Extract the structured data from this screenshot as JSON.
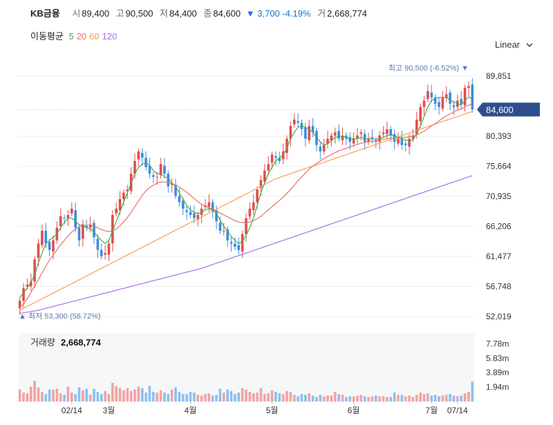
{
  "header": {
    "name": "KB금융",
    "open_label": "시",
    "open": "89,400",
    "high_label": "고",
    "high": "90,500",
    "low_label": "저",
    "low": "84,400",
    "close_label": "종",
    "close": "84,600",
    "change": "▼ 3,700 -4.19%",
    "volume_label": "거",
    "volume": "2,668,774"
  },
  "ma_legend": {
    "title": "이동평균",
    "items": [
      {
        "label": "5",
        "color": "#3fae4a"
      },
      {
        "label": "20",
        "color": "#ee6d6d"
      },
      {
        "label": "60",
        "color": "#f6a04d"
      },
      {
        "label": "120",
        "color": "#a86ef0"
      }
    ]
  },
  "scale_selector": {
    "label": "Linear",
    "icon": "chevron-down-icon"
  },
  "colors": {
    "up": "#e54b4b",
    "down": "#3e8be0",
    "vol_up": "#f2a3a3",
    "vol_down": "#8cc0ee",
    "current_tag": "#2f4f8c"
  },
  "chart_data": {
    "type": "candlestick",
    "price_axis": {
      "ylim": [
        52019,
        91500
      ],
      "ticks": [
        "89,851",
        "80,393",
        "75,664",
        "70,935",
        "66,206",
        "61,477",
        "56,748",
        "52,019"
      ],
      "tick_values": [
        89851,
        80393,
        75664,
        70935,
        66206,
        61477,
        56748,
        52019
      ]
    },
    "current_price": {
      "label": "84,600",
      "value": 84600
    },
    "annotations": {
      "high": "최고 90,500 (-6.52%) ▼",
      "high_value": 90500,
      "low": "▲ 최저 53,300 (58.72%)",
      "low_value": 53300
    },
    "x_labels": [
      "02/14",
      "3월",
      "4월",
      "5월",
      "6월",
      "7월",
      "07/14"
    ],
    "x_label_positions": [
      14,
      24,
      46,
      68,
      90,
      111,
      118
    ],
    "closes": [
      54500,
      56500,
      57000,
      57500,
      61000,
      63500,
      65500,
      63500,
      62500,
      64000,
      66000,
      67800,
      67500,
      68000,
      69000,
      66000,
      64000,
      66500,
      66000,
      66500,
      64500,
      62500,
      61500,
      62000,
      63500,
      68000,
      69000,
      70500,
      71500,
      72000,
      74500,
      76500,
      78000,
      77000,
      75500,
      74500,
      74000,
      74000,
      76000,
      74500,
      72500,
      73000,
      71000,
      70000,
      69000,
      68500,
      68000,
      67500,
      68000,
      69000,
      69500,
      70000,
      68500,
      67000,
      65500,
      65500,
      64000,
      63500,
      63000,
      62500,
      65000,
      67500,
      69000,
      70000,
      72000,
      73500,
      75000,
      76000,
      77500,
      77000,
      76500,
      78000,
      80000,
      82000,
      83000,
      82500,
      81500,
      80000,
      82000,
      81000,
      79000,
      78000,
      79000,
      80000,
      80500,
      81000,
      80000,
      80500,
      80000,
      79500,
      80000,
      80500,
      81000,
      79500,
      80000,
      80000,
      79500,
      80500,
      81000,
      81500,
      80500,
      79500,
      80000,
      79000,
      79000,
      80000,
      80500,
      83000,
      85000,
      86000,
      87500,
      86500,
      85500,
      85000,
      86500,
      87000,
      85500,
      85000,
      86000,
      85500,
      88000,
      88300,
      84600
    ],
    "ma5": [
      55000,
      55800,
      56500,
      57500,
      58500,
      60500,
      62000,
      63500,
      64000,
      64500,
      65000,
      66000,
      66800,
      67500,
      67500,
      67000,
      66500,
      66300,
      66000,
      65800,
      65300,
      64600,
      64000,
      63500,
      64000,
      65500,
      67000,
      68500,
      70000,
      71500,
      73000,
      74500,
      75500,
      76000,
      76200,
      75800,
      75000,
      74500,
      74500,
      74000,
      73800,
      73000,
      72500,
      71500,
      70500,
      69500,
      68800,
      68400,
      68200,
      68400,
      68800,
      69000,
      68800,
      68200,
      67200,
      66200,
      65500,
      64600,
      64000,
      63500,
      63800,
      64800,
      66000,
      67500,
      69500,
      71500,
      73000,
      74500,
      75500,
      76500,
      77000,
      77500,
      78500,
      80000,
      81000,
      81800,
      82000,
      81800,
      81500,
      81000,
      80200,
      79500,
      79000,
      79200,
      79700,
      80200,
      80400,
      80400,
      80200,
      80000,
      80000,
      80000,
      80200,
      80000,
      80000,
      80000,
      79900,
      80000,
      80200,
      80500,
      80600,
      80400,
      80200,
      80000,
      79800,
      79700,
      79800,
      80800,
      82000,
      83500,
      85000,
      86000,
      86400,
      86500,
      86500,
      86500,
      86100,
      85800,
      85500,
      85300,
      86000,
      86600,
      86200
    ],
    "ma20": [
      53500,
      54000,
      54800,
      55800,
      56800,
      57800,
      58900,
      59900,
      60900,
      61700,
      62500,
      63300,
      64000,
      64700,
      65300,
      65800,
      66100,
      66300,
      66400,
      66400,
      66200,
      66000,
      65700,
      65500,
      65400,
      65500,
      65800,
      66300,
      66900,
      67600,
      68400,
      69300,
      70200,
      71100,
      71800,
      72300,
      72700,
      73000,
      73200,
      73200,
      73100,
      72900,
      72700,
      72400,
      72000,
      71600,
      71100,
      70600,
      70100,
      69700,
      69400,
      69100,
      68900,
      68600,
      68300,
      68000,
      67700,
      67400,
      67100,
      66900,
      66800,
      66800,
      66900,
      67100,
      67400,
      67800,
      68300,
      68800,
      69300,
      69800,
      70300,
      70800,
      71400,
      72000,
      72700,
      73400,
      74000,
      74600,
      75200,
      75700,
      76100,
      76500,
      76900,
      77200,
      77500,
      77800,
      78100,
      78300,
      78500,
      78700,
      78900,
      79100,
      79300,
      79400,
      79500,
      79600,
      79700,
      79800,
      79900,
      80000,
      80100,
      80100,
      80200,
      80200,
      80200,
      80300,
      80400,
      80600,
      80900,
      81200,
      81600,
      82000,
      82400,
      82800,
      83200,
      83600,
      83900,
      84200,
      84500,
      84700,
      85000,
      85300,
      85500
    ],
    "ma60": [
      53000,
      53300,
      53600,
      53900,
      54200,
      54500,
      54800,
      55100,
      55400,
      55700,
      56000,
      56300,
      56600,
      56900,
      57200,
      57500,
      57800,
      58100,
      58400,
      58700,
      59000,
      59300,
      59600,
      59900,
      60200,
      60500,
      60800,
      61100,
      61400,
      61700,
      62000,
      62300,
      62600,
      62900,
      63200,
      63500,
      63800,
      64100,
      64400,
      64700,
      65000,
      65300,
      65600,
      65900,
      66200,
      66500,
      66800,
      67100,
      67400,
      67700,
      68000,
      68300,
      68600,
      68900,
      69200,
      69500,
      69800,
      70100,
      70400,
      70700,
      71000,
      71300,
      71600,
      71900,
      72200,
      72500,
      72800,
      73100,
      73400,
      73700,
      73900,
      74100,
      74300,
      74500,
      74700,
      74900,
      75100,
      75300,
      75500,
      75700,
      75900,
      76100,
      76300,
      76500,
      76700,
      76900,
      77100,
      77300,
      77500,
      77700,
      77900,
      78100,
      78300,
      78500,
      78700,
      78900,
      79100,
      79300,
      79500,
      79700,
      79900,
      80100,
      80300,
      80500,
      80700,
      80900,
      81100,
      81300,
      81500,
      81700,
      81900,
      82100,
      82300,
      82500,
      82700,
      82900,
      83100,
      83300,
      83500,
      83700,
      83900,
      84100,
      84300
    ],
    "ma120": [
      52500,
      52600,
      52700,
      52800,
      52900,
      53000,
      53150,
      53300,
      53450,
      53600,
      53750,
      53900,
      54050,
      54200,
      54350,
      54500,
      54650,
      54800,
      54950,
      55100,
      55250,
      55400,
      55550,
      55700,
      55850,
      56000,
      56150,
      56300,
      56450,
      56600,
      56750,
      56900,
      57050,
      57200,
      57350,
      57500,
      57650,
      57800,
      57950,
      58100,
      58250,
      58400,
      58550,
      58700,
      58850,
      59000,
      59150,
      59300,
      59450,
      59600,
      59800,
      60000,
      60200,
      60400,
      60600,
      60800,
      61000,
      61200,
      61400,
      61600,
      61800,
      62000,
      62200,
      62400,
      62600,
      62800,
      63000,
      63200,
      63400,
      63600,
      63800,
      64000,
      64200,
      64400,
      64600,
      64800,
      65000,
      65200,
      65400,
      65600,
      65800,
      66000,
      66200,
      66400,
      66600,
      66800,
      67000,
      67200,
      67400,
      67600,
      67800,
      68000,
      68200,
      68400,
      68600,
      68800,
      69000,
      69200,
      69400,
      69600,
      69800,
      70000,
      70200,
      70400,
      70600,
      70800,
      71000,
      71200,
      71400,
      71600,
      71800,
      72000,
      72200,
      72400,
      72600,
      72800,
      73000,
      73200,
      73400,
      73600,
      73800,
      74000,
      74200
    ],
    "volume_panel": {
      "title": "거래량",
      "value": "2,668,774",
      "ticks": [
        "7.78m",
        "5.83m",
        "3.89m",
        "1.94m"
      ],
      "tick_values": [
        7.78,
        5.83,
        3.89,
        1.94
      ],
      "volumes": [
        1.6,
        1.2,
        1.1,
        2.0,
        2.8,
        1.9,
        1.3,
        1.0,
        1.6,
        1.6,
        1.7,
        1.1,
        0.9,
        2.0,
        1.2,
        1.0,
        1.9,
        1.5,
        1.7,
        0.9,
        1.7,
        1.3,
        1.0,
        1.4,
        1.0,
        2.5,
        2.1,
        1.8,
        1.5,
        1.8,
        1.4,
        1.6,
        2.0,
        1.8,
        1.2,
        2.1,
        1.3,
        1.2,
        1.5,
        1.2,
        1.0,
        1.6,
        1.9,
        1.3,
        1.0,
        1.0,
        1.3,
        1.2,
        0.9,
        0.8,
        1.0,
        1.1,
        0.8,
        0.9,
        1.7,
        1.2,
        1.6,
        1.4,
        1.0,
        1.2,
        1.8,
        1.6,
        1.3,
        1.1,
        1.2,
        1.8,
        1.0,
        1.1,
        1.5,
        1.3,
        1.1,
        1.0,
        1.4,
        1.3,
        0.9,
        0.7,
        1.0,
        0.9,
        1.1,
        0.8,
        0.6,
        0.9,
        0.7,
        0.8,
        0.8,
        1.3,
        1.0,
        0.9,
        0.6,
        0.7,
        0.7,
        0.8,
        0.9,
        0.7,
        0.6,
        0.7,
        0.8,
        0.7,
        0.7,
        0.6,
        0.6,
        1.2,
        0.9,
        0.9,
        0.7,
        0.8,
        0.6,
        0.9,
        1.2,
        1.0,
        1.1,
        0.8,
        0.9,
        0.7,
        0.8,
        0.9,
        1.0,
        0.8,
        0.7,
        0.8,
        1.1,
        1.3,
        2.67
      ]
    }
  }
}
